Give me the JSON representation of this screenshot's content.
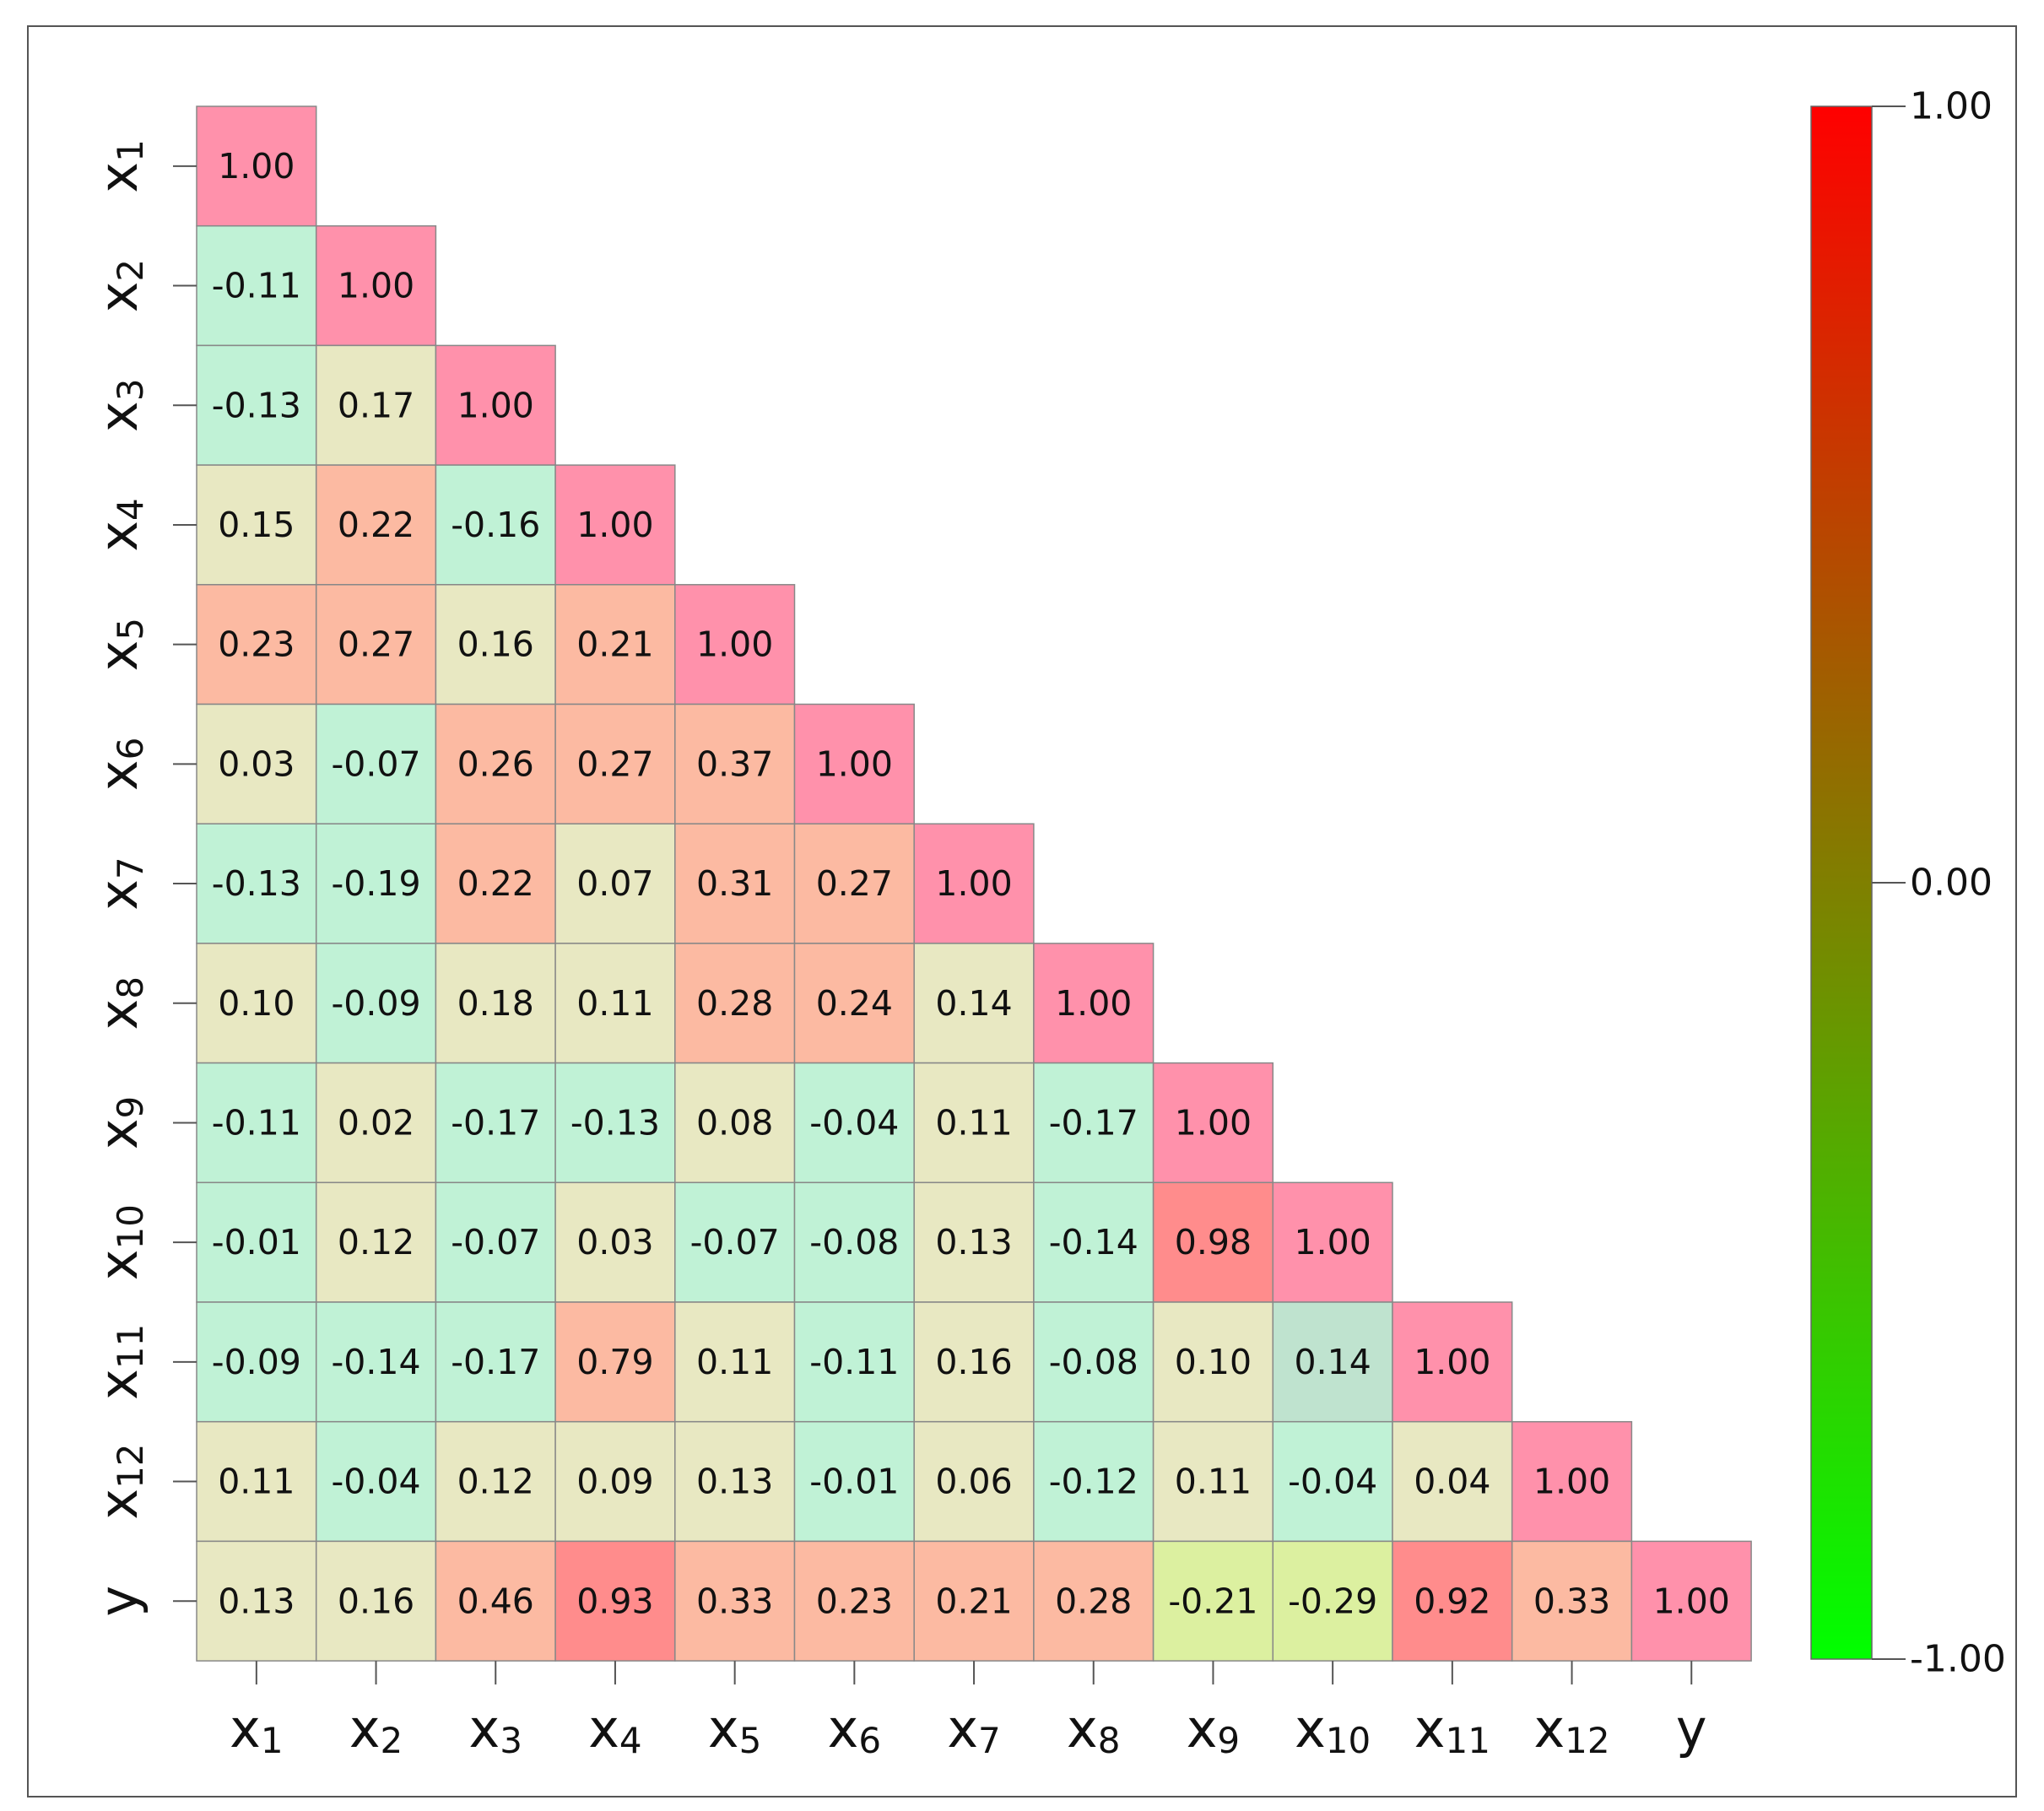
{
  "chart_data": {
    "type": "heatmap",
    "variables": [
      {
        "base": "x",
        "sub": "1"
      },
      {
        "base": "x",
        "sub": "2"
      },
      {
        "base": "x",
        "sub": "3"
      },
      {
        "base": "x",
        "sub": "4"
      },
      {
        "base": "x",
        "sub": "5"
      },
      {
        "base": "x",
        "sub": "6"
      },
      {
        "base": "x",
        "sub": "7"
      },
      {
        "base": "x",
        "sub": "8"
      },
      {
        "base": "x",
        "sub": "9"
      },
      {
        "base": "x",
        "sub": "10"
      },
      {
        "base": "x",
        "sub": "11"
      },
      {
        "base": "x",
        "sub": "12"
      },
      {
        "base": "y",
        "sub": ""
      }
    ],
    "matrix_lower": [
      [
        "1.00"
      ],
      [
        "-0.11",
        "1.00"
      ],
      [
        "-0.13",
        "0.17",
        "1.00"
      ],
      [
        "0.15",
        "0.22",
        "-0.16",
        "1.00"
      ],
      [
        "0.23",
        "0.27",
        "0.16",
        "0.21",
        "1.00"
      ],
      [
        "0.03",
        "-0.07",
        "0.26",
        "0.27",
        "0.37",
        "1.00"
      ],
      [
        "-0.13",
        "-0.19",
        "0.22",
        "0.07",
        "0.31",
        "0.27",
        "1.00"
      ],
      [
        "0.10",
        "-0.09",
        "0.18",
        "0.11",
        "0.28",
        "0.24",
        "0.14",
        "1.00"
      ],
      [
        "-0.11",
        "0.02",
        "-0.17",
        "-0.13",
        "0.08",
        "-0.04",
        "0.11",
        "-0.17",
        "1.00"
      ],
      [
        "-0.01",
        "0.12",
        "-0.07",
        "0.03",
        "-0.07",
        "-0.08",
        "0.13",
        "-0.14",
        "0.98",
        "1.00"
      ],
      [
        "-0.09",
        "-0.14",
        "-0.17",
        "0.79",
        "0.11",
        "-0.11",
        "0.16",
        "-0.08",
        "0.10",
        "0.14",
        "1.00"
      ],
      [
        "0.11",
        "-0.04",
        "0.12",
        "0.09",
        "0.13",
        "-0.01",
        "0.06",
        "-0.12",
        "0.11",
        "-0.04",
        "0.04",
        "1.00"
      ],
      [
        "0.13",
        "0.16",
        "0.46",
        "0.93",
        "0.33",
        "0.23",
        "0.21",
        "0.28",
        "-0.21",
        "-0.29",
        "0.92",
        "0.33",
        "1.00"
      ]
    ],
    "colorbar": {
      "min": -1.0,
      "max": 1.0,
      "ticks": [
        "1.00",
        "0.00",
        "-1.00"
      ],
      "min_color": "#00ff00",
      "max_color": "#ff0000"
    },
    "colors": {
      "diagonal": "#ff91ab",
      "pos_light": "#e8e8c2",
      "pos_mid": "#fcbaa2",
      "pos_high": "#ff8c8c",
      "neg_light": "#c0f2d6",
      "neg_strong": "#dcf0a0",
      "special_cell": "#bfe3cf",
      "cell_border": "#888888",
      "text": "#111111"
    }
  }
}
